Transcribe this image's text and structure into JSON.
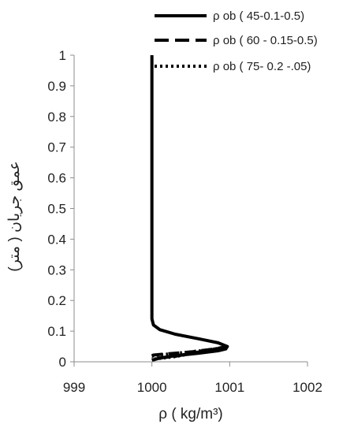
{
  "chart_data": {
    "type": "line",
    "title": "",
    "xlabel": "ρ ( kg/m³)",
    "ylabel": "عمق جريان ( متر)",
    "xlim": [
      999,
      1002
    ],
    "ylim": [
      0,
      1
    ],
    "x_ticks": [
      "999",
      "1000",
      "1001",
      "1002"
    ],
    "y_ticks": [
      "0",
      "0.1",
      "0.2",
      "0.3",
      "0.4",
      "0.5",
      "0.6",
      "0.7",
      "0.8",
      "0.9",
      "1"
    ],
    "grid": false,
    "legend_position": "top-right",
    "series": [
      {
        "name": "ρ ob ( 45-0.1-0.5)",
        "style": "solid",
        "color": "#000000",
        "x": [
          1000.0,
          1000.0,
          1000.0,
          1000.02,
          1000.1,
          1000.3,
          1000.6,
          1000.85,
          1000.97,
          1000.95,
          1000.85,
          1000.6,
          1000.3,
          1000.1,
          1000.0
        ],
        "y": [
          1.0,
          0.5,
          0.14,
          0.12,
          0.105,
          0.09,
          0.075,
          0.062,
          0.05,
          0.042,
          0.036,
          0.028,
          0.02,
          0.012,
          0.005
        ]
      },
      {
        "name": "ρ ob ( 60 - 0.15-0.5)",
        "style": "dashed",
        "color": "#000000",
        "x": [
          1000.0,
          1000.02,
          1000.2,
          1000.5,
          1000.75,
          1000.9,
          1000.95,
          1000.9,
          1000.6,
          1000.3,
          1000.0
        ],
        "y": [
          0.02,
          0.022,
          0.026,
          0.032,
          0.04,
          0.046,
          0.05,
          0.045,
          0.032,
          0.018,
          0.01
        ]
      },
      {
        "name": "ρ ob ( 75- 0.2 -.05)",
        "style": "dotted",
        "color": "#000000",
        "x": [
          1000.0,
          1000.03,
          1000.2,
          1000.45,
          1000.7,
          1000.88,
          1000.93,
          1000.85,
          1000.6,
          1000.3,
          1000.0
        ],
        "y": [
          0.018,
          0.02,
          0.025,
          0.031,
          0.038,
          0.044,
          0.048,
          0.044,
          0.031,
          0.017,
          0.008
        ]
      }
    ]
  }
}
